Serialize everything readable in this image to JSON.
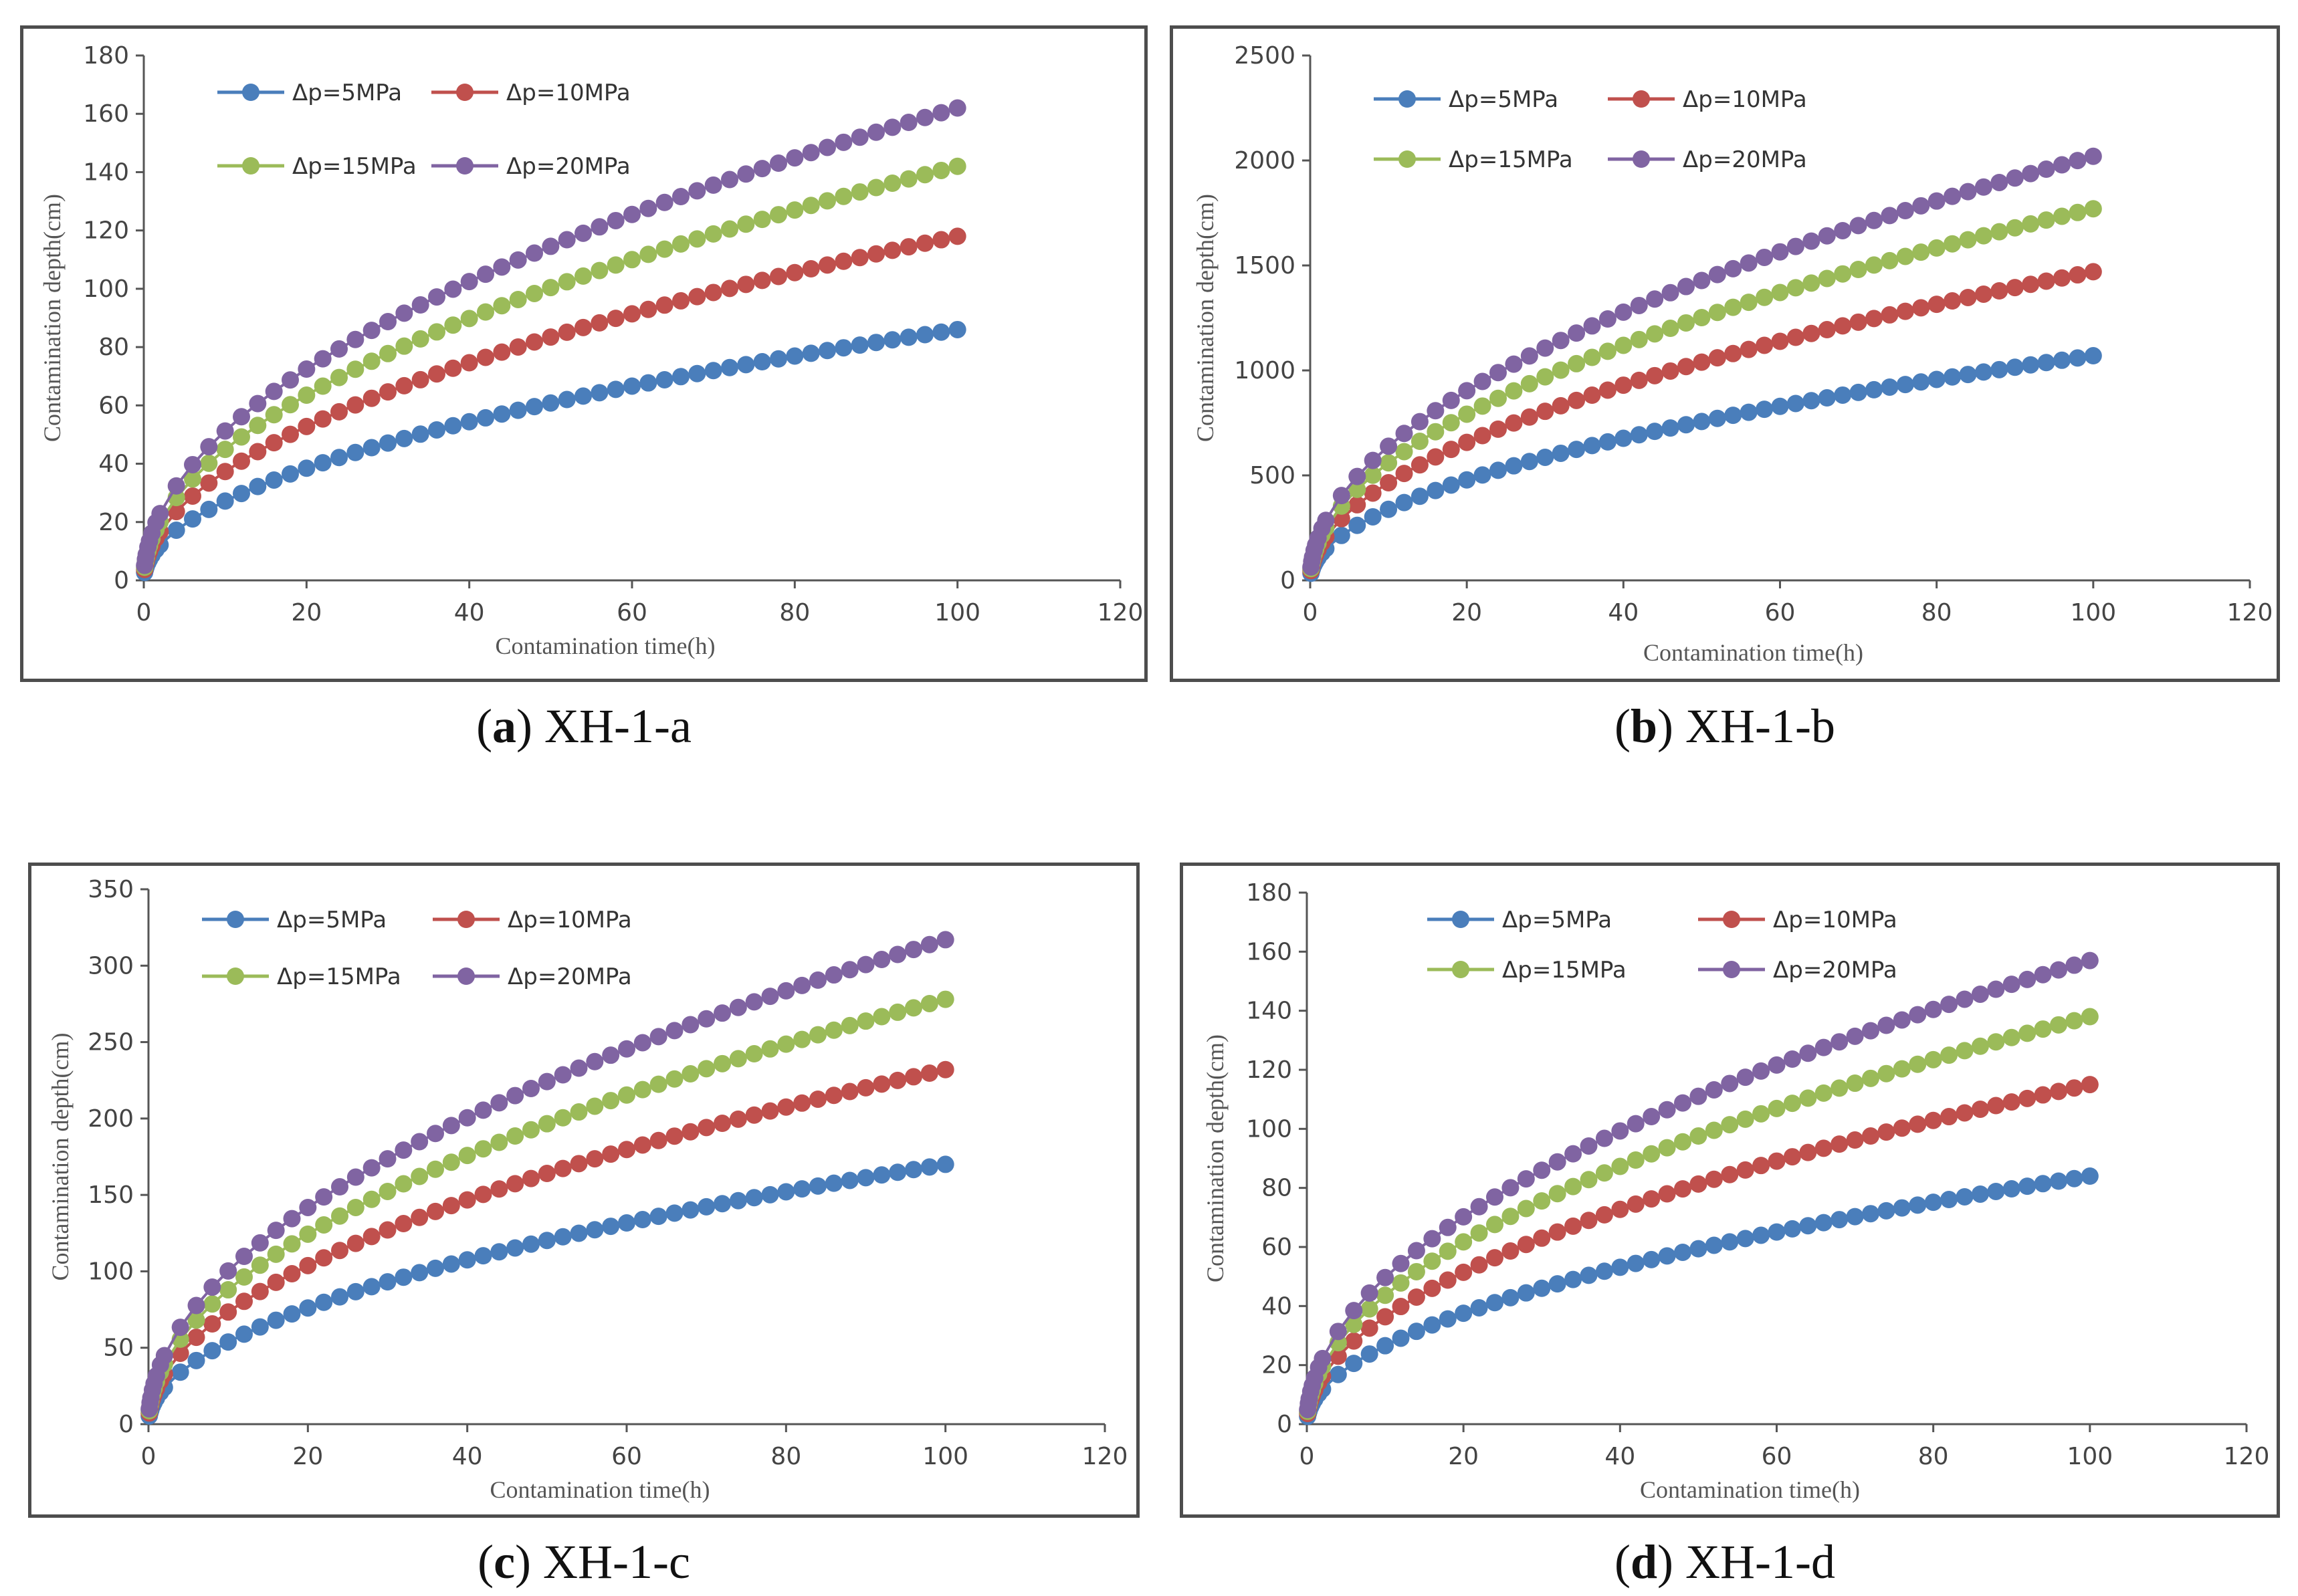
{
  "chart_data": [
    {
      "id": "a",
      "type": "line",
      "caption_letter": "a",
      "caption_text": "XH-1-a",
      "xlabel": "Contamination time(h)",
      "ylabel": "Contamination depth(cm)",
      "xlim": [
        0,
        120
      ],
      "ylim": [
        0,
        180
      ],
      "xticks": [
        "0",
        "20",
        "40",
        "60",
        "80",
        "100",
        "120"
      ],
      "yticks": [
        "0",
        "20",
        "40",
        "60",
        "80",
        "100",
        "120",
        "140",
        "160",
        "180"
      ],
      "legend_rows": 2,
      "series": [
        {
          "name": "Δp=5MPa",
          "color": "#4a7ebb",
          "end_value": 86
        },
        {
          "name": "Δp=10MPa",
          "color": "#c0504d",
          "end_value": 118
        },
        {
          "name": "Δp=15MPa",
          "color": "#9bbb59",
          "end_value": 142
        },
        {
          "name": "Δp=20MPa",
          "color": "#8064a2",
          "end_value": 162
        }
      ],
      "x_range": [
        0,
        100
      ]
    },
    {
      "id": "b",
      "type": "line",
      "caption_letter": "b",
      "caption_text": "XH-1-b",
      "xlabel": "Contamination time(h)",
      "ylabel": "Contamination depth(cm)",
      "xlim": [
        0,
        120
      ],
      "ylim": [
        0,
        2500
      ],
      "xticks": [
        "0",
        "20",
        "40",
        "60",
        "80",
        "100",
        "120"
      ],
      "yticks": [
        "0",
        "500",
        "1000",
        "1500",
        "2000",
        "2500"
      ],
      "legend_rows": 2,
      "series": [
        {
          "name": "Δp=5MPa",
          "color": "#4a7ebb",
          "end_value": 1070
        },
        {
          "name": "Δp=10MPa",
          "color": "#c0504d",
          "end_value": 1470
        },
        {
          "name": "Δp=15MPa",
          "color": "#9bbb59",
          "end_value": 1770
        },
        {
          "name": "Δp=20MPa",
          "color": "#8064a2",
          "end_value": 2020
        }
      ],
      "x_range": [
        0,
        100
      ]
    },
    {
      "id": "c",
      "type": "line",
      "caption_letter": "c",
      "caption_text": "XH-1-c",
      "xlabel": "Contamination time(h)",
      "ylabel": "Contamination depth(cm)",
      "xlim": [
        0,
        120
      ],
      "ylim": [
        0,
        350
      ],
      "xticks": [
        "0",
        "20",
        "40",
        "60",
        "80",
        "100",
        "120"
      ],
      "yticks": [
        "0",
        "50",
        "100",
        "150",
        "200",
        "250",
        "300",
        "350"
      ],
      "legend_rows": 2,
      "series": [
        {
          "name": "Δp=5MPa",
          "color": "#4a7ebb",
          "end_value": 170
        },
        {
          "name": "Δp=10MPa",
          "color": "#c0504d",
          "end_value": 232
        },
        {
          "name": "Δp=15MPa",
          "color": "#9bbb59",
          "end_value": 278
        },
        {
          "name": "Δp=20MPa",
          "color": "#8064a2",
          "end_value": 317
        }
      ],
      "x_range": [
        0,
        100
      ]
    },
    {
      "id": "d",
      "type": "line",
      "caption_letter": "d",
      "caption_text": "XH-1-d",
      "xlabel": "Contamination time(h)",
      "ylabel": "Contamination depth(cm)",
      "xlim": [
        0,
        120
      ],
      "ylim": [
        0,
        180
      ],
      "xticks": [
        "0",
        "20",
        "40",
        "60",
        "80",
        "100",
        "120"
      ],
      "yticks": [
        "0",
        "20",
        "40",
        "60",
        "80",
        "100",
        "120",
        "140",
        "160",
        "180"
      ],
      "legend_rows": 2,
      "series": [
        {
          "name": "Δp=5MPa",
          "color": "#4a7ebb",
          "end_value": 84
        },
        {
          "name": "Δp=10MPa",
          "color": "#c0504d",
          "end_value": 115
        },
        {
          "name": "Δp=15MPa",
          "color": "#9bbb59",
          "end_value": 138
        },
        {
          "name": "Δp=20MPa",
          "color": "#8064a2",
          "end_value": 157
        }
      ],
      "x_range": [
        0,
        100
      ]
    }
  ]
}
